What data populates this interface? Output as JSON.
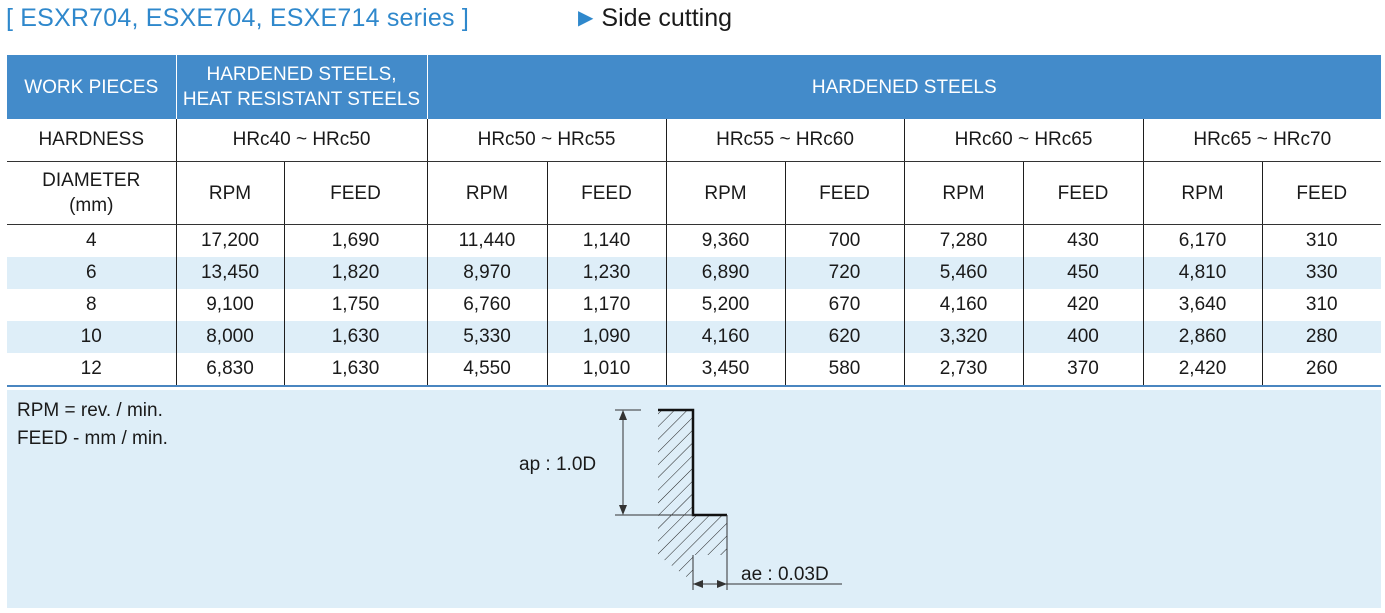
{
  "header": {
    "series_title": "[ ESXR704, ESXE704, ESXE714 series ]",
    "section_title": "Side cutting",
    "section_arrow_icon": "triangle-right-icon"
  },
  "table": {
    "work_pieces_label": "WORK PIECES",
    "group1_label_line1": "HARDENED STEELS,",
    "group1_label_line2": "HEAT RESISTANT STEELS",
    "group2_label": "HARDENED STEELS",
    "hardness_label": "HARDNESS",
    "hardness_ranges": [
      "HRc40 ~ HRc50",
      "HRc50 ~ HRc55",
      "HRc55 ~ HRc60",
      "HRc60 ~ HRc65",
      "HRc65 ~ HRc70"
    ],
    "diameter_label_line1": "DIAMETER",
    "diameter_label_line2": "(mm)",
    "rpm_label": "RPM",
    "feed_label": "FEED",
    "rows": [
      {
        "diameter": "4",
        "values": [
          "17,200",
          "1,690",
          "11,440",
          "1,140",
          "9,360",
          "700",
          "7,280",
          "430",
          "6,170",
          "310"
        ]
      },
      {
        "diameter": "6",
        "values": [
          "13,450",
          "1,820",
          "8,970",
          "1,230",
          "6,890",
          "720",
          "5,460",
          "450",
          "4,810",
          "330"
        ]
      },
      {
        "diameter": "8",
        "values": [
          "9,100",
          "1,750",
          "6,760",
          "1,170",
          "5,200",
          "670",
          "4,160",
          "420",
          "3,640",
          "310"
        ]
      },
      {
        "diameter": "10",
        "values": [
          "8,000",
          "1,630",
          "5,330",
          "1,090",
          "4,160",
          "620",
          "3,320",
          "400",
          "2,860",
          "280"
        ]
      },
      {
        "diameter": "12",
        "values": [
          "6,830",
          "1,630",
          "4,550",
          "1,010",
          "3,450",
          "580",
          "2,730",
          "370",
          "2,420",
          "260"
        ]
      }
    ]
  },
  "notes": {
    "rpm_note": "RPM = rev. / min.",
    "feed_note": "FEED - mm / min."
  },
  "diagram": {
    "ap_label": "ap : 1.0D",
    "ae_label": "ae : 0.03D"
  },
  "colors": {
    "accent_blue": "#2f88cc",
    "header_fill": "#438bca",
    "alt_row_fill": "#deeef8"
  }
}
